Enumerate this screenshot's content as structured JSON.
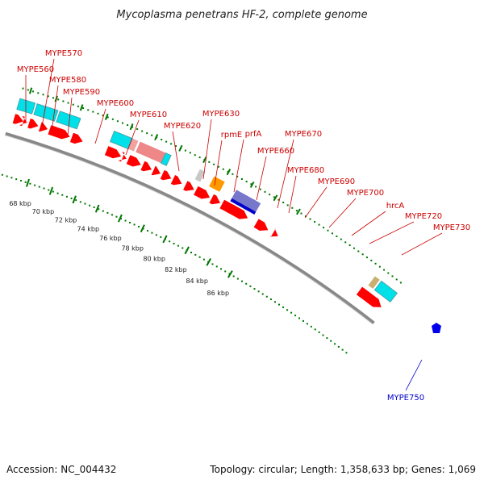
{
  "title": "Mycoplasma penetrans HF-2, complete genome",
  "footer": {
    "accession": "Accession: NC_004432",
    "topology": "Topology: circular; Length: 1,358,633 bp; Genes: 1,069"
  },
  "colors": {
    "cds_forward": "#ff0000",
    "cds_reverse": "#ff0000",
    "gene_plus_strand": "#00e0e8",
    "label_red": "#cc0000",
    "label_blue": "#0000cc",
    "tick_green": "#007700",
    "backbone": "#888888"
  },
  "kbp_labels": [
    "68 kbp",
    "70 kbp",
    "72 kbp",
    "74 kbp",
    "76 kbp",
    "78 kbp",
    "80 kbp",
    "82 kbp",
    "84 kbp",
    "86 kbp"
  ],
  "gene_labels": [
    {
      "text": "MYPE560",
      "color": "red"
    },
    {
      "text": "MYPE570",
      "color": "red"
    },
    {
      "text": "MYPE580",
      "color": "red"
    },
    {
      "text": "MYPE590",
      "color": "red"
    },
    {
      "text": "MYPE600",
      "color": "red"
    },
    {
      "text": "MYPE610",
      "color": "red"
    },
    {
      "text": "MYPE620",
      "color": "red"
    },
    {
      "text": "MYPE630",
      "color": "red"
    },
    {
      "text": "rpmE",
      "color": "red"
    },
    {
      "text": "prfA",
      "color": "red"
    },
    {
      "text": "MYPE660",
      "color": "red"
    },
    {
      "text": "MYPE670",
      "color": "red"
    },
    {
      "text": "MYPE680",
      "color": "red"
    },
    {
      "text": "MYPE690",
      "color": "red"
    },
    {
      "text": "MYPE700",
      "color": "red"
    },
    {
      "text": "hrcA",
      "color": "red"
    },
    {
      "text": "MYPE720",
      "color": "red"
    },
    {
      "text": "MYPE730",
      "color": "red"
    },
    {
      "text": "MYPE750",
      "color": "blue"
    }
  ]
}
